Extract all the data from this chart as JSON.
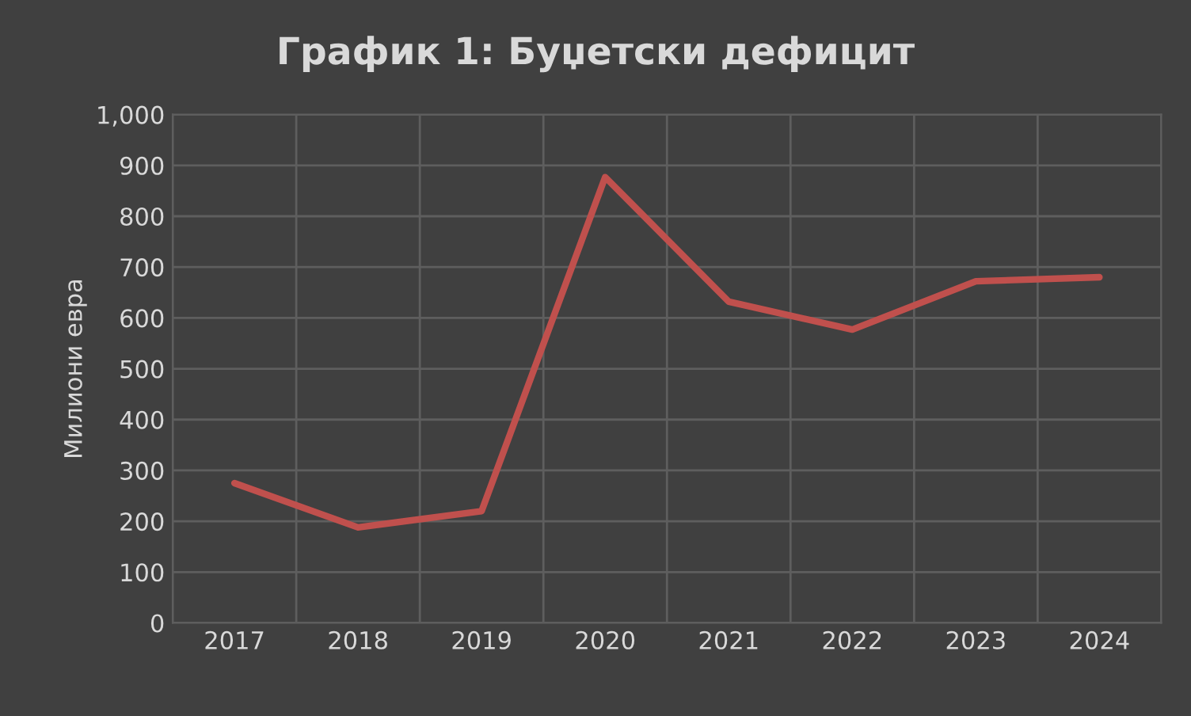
{
  "chart_data": {
    "type": "line",
    "title": "График 1: Буџетски дефицит",
    "ylabel": "Милиони евра",
    "categories": [
      "2017",
      "2018",
      "2019",
      "2020",
      "2021",
      "2022",
      "2023",
      "2024"
    ],
    "series": [
      {
        "color": "#c0504d",
        "values": [
          275,
          188,
          220,
          877,
          632,
          577,
          672,
          680
        ]
      }
    ],
    "ylim": [
      0,
      1000
    ],
    "yticks": [
      0,
      100,
      200,
      300,
      400,
      500,
      600,
      700,
      800,
      900,
      {
        "value": 1000,
        "label": "1,000"
      }
    ],
    "grid": true,
    "legend": false,
    "marker": "none",
    "line_style": "solid"
  }
}
